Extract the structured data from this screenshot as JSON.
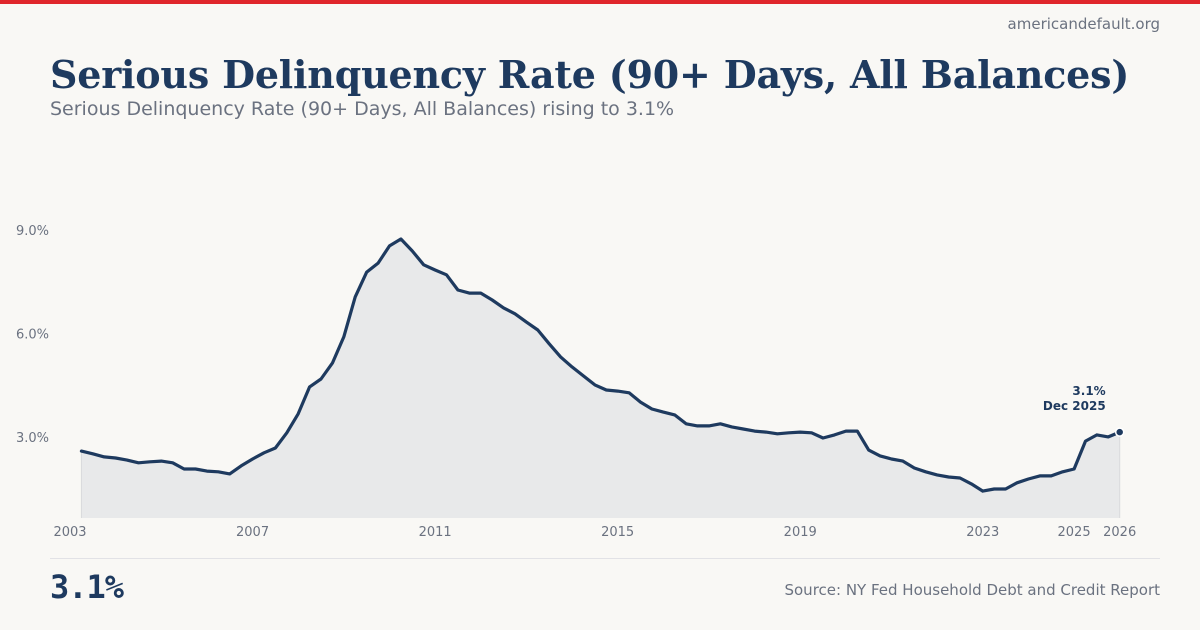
{
  "site": "americandefault.org",
  "header": {
    "title": "Serious Delinquency Rate (90+ Days, All Balances)",
    "subtitle": "Serious Delinquency Rate (90+ Days, All Balances) rising to 3.1%"
  },
  "footer": {
    "big_value": "3.1%",
    "source": "Source: NY Fed Household Debt and Credit Report"
  },
  "colors": {
    "accent_bar": "#e0262b",
    "line": "#1e3a5f",
    "area_fill": "#e8e9ea",
    "muted_text": "#6b7280"
  },
  "chart_data": {
    "type": "area",
    "title": "Serious Delinquency Rate (90+ Days, All Balances)",
    "subtitle": "Serious Delinquency Rate (90+ Days, All Balances) rising to 3.1%",
    "xlabel": "",
    "ylabel": "",
    "x_start": 2003.25,
    "x_step": 0.25,
    "xlim": [
      2003,
      2026
    ],
    "ylim": [
      0.65,
      9.5
    ],
    "x_ticks": [
      {
        "value": 2003,
        "label": "2003"
      },
      {
        "value": 2007,
        "label": "2007"
      },
      {
        "value": 2011,
        "label": "2011"
      },
      {
        "value": 2015,
        "label": "2015"
      },
      {
        "value": 2019,
        "label": "2019"
      },
      {
        "value": 2023,
        "label": "2023"
      },
      {
        "value": 2025,
        "label": "2025"
      },
      {
        "value": 2026,
        "label": "2026"
      }
    ],
    "y_ticks": [
      {
        "value": 3.0,
        "label": "3.0%"
      },
      {
        "value": 6.0,
        "label": "6.0%"
      },
      {
        "value": 9.0,
        "label": "9.0%"
      }
    ],
    "grid": false,
    "series": [
      {
        "name": "Serious Delinquency Rate (%)",
        "values": [
          2.59,
          2.51,
          2.42,
          2.39,
          2.33,
          2.25,
          2.28,
          2.3,
          2.25,
          2.07,
          2.07,
          2.01,
          1.99,
          1.93,
          2.16,
          2.36,
          2.54,
          2.68,
          3.12,
          3.67,
          4.45,
          4.68,
          5.14,
          5.9,
          7.06,
          7.78,
          8.04,
          8.54,
          8.74,
          8.39,
          7.99,
          7.84,
          7.7,
          7.26,
          7.17,
          7.17,
          6.97,
          6.74,
          6.57,
          6.33,
          6.1,
          5.7,
          5.32,
          5.03,
          4.77,
          4.51,
          4.36,
          4.33,
          4.28,
          4.01,
          3.81,
          3.72,
          3.64,
          3.38,
          3.32,
          3.32,
          3.38,
          3.29,
          3.23,
          3.17,
          3.14,
          3.09,
          3.12,
          3.14,
          3.12,
          2.97,
          3.06,
          3.17,
          3.17,
          2.62,
          2.45,
          2.36,
          2.3,
          2.1,
          1.99,
          1.9,
          1.84,
          1.81,
          1.64,
          1.43,
          1.49,
          1.49,
          1.67,
          1.78,
          1.87,
          1.87,
          1.99,
          2.07,
          2.88,
          3.06,
          3.0,
          3.14
        ]
      }
    ],
    "annotation": {
      "value_label": "3.1%",
      "date_label": "Dec 2025"
    },
    "legend": "none"
  }
}
